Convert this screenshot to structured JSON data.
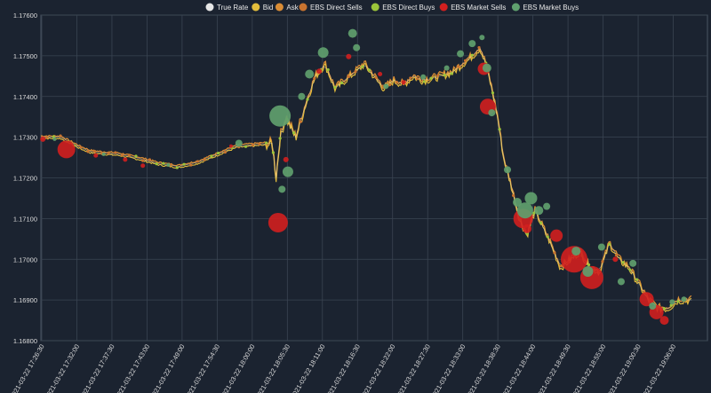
{
  "colors": {
    "background": "#1b2330",
    "grid": "#3a4452",
    "axis": "#4a5462",
    "true_rate": "#e6e6e6",
    "bid": "#e3bd3c",
    "ask": "#d98c35",
    "ebs_direct_sells": "#c8732f",
    "ebs_direct_buys": "#9bc43a",
    "ebs_market_sells": "#d21f1f",
    "ebs_market_buys": "#5fa06e"
  },
  "chart_data": {
    "type": "scatter",
    "title": "",
    "xlabel": "",
    "ylabel": "",
    "legend_position": "top-center",
    "grid": true,
    "ylim": [
      1.168,
      1.176
    ],
    "yticks": [
      "1.17600",
      "1.17500",
      "1.17400",
      "1.17300",
      "1.17200",
      "1.17100",
      "1.17000",
      "1.16900",
      "1.16800"
    ],
    "xticks": [
      "2021-03-22 17:26:30",
      "2021-03-22 17:32:00",
      "2021-03-22 17:37:30",
      "2021-03-22 17:43:00",
      "2021-03-22 17:49:00",
      "2021-03-22 17:54:30",
      "2021-03-22 18:00:00",
      "2021-03-22 18:05:30",
      "2021-03-22 18:11:00",
      "2021-03-22 18:16:30",
      "2021-03-22 18:22:00",
      "2021-03-22 18:27:30",
      "2021-03-22 18:33:00",
      "2021-03-22 18:38:30",
      "2021-03-22 18:44:00",
      "2021-03-22 18:49:30",
      "2021-03-22 18:55:00",
      "2021-03-22 19:00:30",
      "2021-03-22 19:06:00"
    ],
    "legend": [
      {
        "name": "True Rate",
        "color": "#e6e6e6"
      },
      {
        "name": "Bid",
        "color": "#e3bd3c"
      },
      {
        "name": "Ask",
        "color": "#d98c35"
      },
      {
        "name": "EBS Direct Sells",
        "color": "#c8732f"
      },
      {
        "name": "EBS Direct Buys",
        "color": "#9bc43a"
      },
      {
        "name": "EBS Market Sells",
        "color": "#d21f1f"
      },
      {
        "name": "EBS Market Buys",
        "color": "#5fa06e"
      }
    ],
    "price_path": [
      [
        0,
        1.173
      ],
      [
        1,
        1.173
      ],
      [
        2,
        1.17275
      ],
      [
        2.5,
        1.17265
      ],
      [
        3,
        1.17262
      ],
      [
        4,
        1.17258
      ],
      [
        5,
        1.17248
      ],
      [
        6,
        1.17235
      ],
      [
        7,
        1.17228
      ],
      [
        8,
        1.17238
      ],
      [
        9,
        1.17258
      ],
      [
        10,
        1.17278
      ],
      [
        11,
        1.17282
      ],
      [
        11.8,
        1.17285
      ],
      [
        12,
        1.172
      ],
      [
        12.2,
        1.173
      ],
      [
        12.5,
        1.1735
      ],
      [
        13,
        1.173
      ],
      [
        13.5,
        1.1738
      ],
      [
        14,
        1.1745
      ],
      [
        14.5,
        1.1748
      ],
      [
        15,
        1.1742
      ],
      [
        15.5,
        1.1744
      ],
      [
        16,
        1.1746
      ],
      [
        16.5,
        1.1748
      ],
      [
        17,
        1.1745
      ],
      [
        17.5,
        1.1742
      ],
      [
        18,
        1.1744
      ],
      [
        18.5,
        1.1743
      ],
      [
        19,
        1.1745
      ],
      [
        19.5,
        1.1744
      ],
      [
        20,
        1.17445
      ],
      [
        21,
        1.1746
      ],
      [
        21.5,
        1.1748
      ],
      [
        22,
        1.175
      ],
      [
        22.4,
        1.1752
      ],
      [
        22.7,
        1.1748
      ],
      [
        23,
        1.1742
      ],
      [
        23.3,
        1.1735
      ],
      [
        23.6,
        1.1725
      ],
      [
        24,
        1.1718
      ],
      [
        24.4,
        1.171
      ],
      [
        24.8,
        1.1706
      ],
      [
        25.2,
        1.1712
      ],
      [
        25.6,
        1.1708
      ],
      [
        26,
        1.1704
      ],
      [
        26.5,
        1.1698
      ],
      [
        27,
        1.17
      ],
      [
        27.5,
        1.1702
      ],
      [
        28,
        1.1698
      ],
      [
        28.5,
        1.1697
      ],
      [
        29,
        1.1704
      ],
      [
        29.5,
        1.17
      ],
      [
        30,
        1.1698
      ],
      [
        30.5,
        1.1694
      ],
      [
        31,
        1.169
      ],
      [
        31.5,
        1.1688
      ],
      [
        32,
        1.1688
      ],
      [
        32.5,
        1.169
      ],
      [
        33,
        1.169
      ]
    ],
    "market_sells": [
      {
        "x": 0.1,
        "y": 1.17295,
        "size": 3
      },
      {
        "x": 1.3,
        "y": 1.1727,
        "size": 10
      },
      {
        "x": 2.8,
        "y": 1.17255,
        "size": 2.5
      },
      {
        "x": 4.3,
        "y": 1.17245,
        "size": 2.5
      },
      {
        "x": 5.2,
        "y": 1.1723,
        "size": 2.5
      },
      {
        "x": 9.7,
        "y": 1.17278,
        "size": 2
      },
      {
        "x": 12.1,
        "y": 1.1709,
        "size": 11
      },
      {
        "x": 12.5,
        "y": 1.17245,
        "size": 3
      },
      {
        "x": 14.2,
        "y": 1.17462,
        "size": 3
      },
      {
        "x": 15.7,
        "y": 1.17498,
        "size": 3
      },
      {
        "x": 17.3,
        "y": 1.17455,
        "size": 2.5
      },
      {
        "x": 18.5,
        "y": 1.17435,
        "size": 2.5
      },
      {
        "x": 22.6,
        "y": 1.17468,
        "size": 7
      },
      {
        "x": 22.8,
        "y": 1.17375,
        "size": 9
      },
      {
        "x": 24.6,
        "y": 1.171,
        "size": 11
      },
      {
        "x": 24.8,
        "y": 1.17075,
        "size": 5
      },
      {
        "x": 26.3,
        "y": 1.17058,
        "size": 7
      },
      {
        "x": 27.2,
        "y": 1.17,
        "size": 15
      },
      {
        "x": 28.1,
        "y": 1.16955,
        "size": 13
      },
      {
        "x": 29.3,
        "y": 1.17,
        "size": 3
      },
      {
        "x": 30.9,
        "y": 1.16902,
        "size": 8
      },
      {
        "x": 31.4,
        "y": 1.1687,
        "size": 8
      },
      {
        "x": 31.8,
        "y": 1.1685,
        "size": 5
      }
    ],
    "market_buys": [
      {
        "x": 0.7,
        "y": 1.17295,
        "size": 2
      },
      {
        "x": 3.2,
        "y": 1.17258,
        "size": 2
      },
      {
        "x": 6.5,
        "y": 1.17232,
        "size": 2
      },
      {
        "x": 10.1,
        "y": 1.17285,
        "size": 4
      },
      {
        "x": 12.2,
        "y": 1.17352,
        "size": 12
      },
      {
        "x": 12.6,
        "y": 1.17215,
        "size": 6
      },
      {
        "x": 12.3,
        "y": 1.17172,
        "size": 4
      },
      {
        "x": 13.3,
        "y": 1.174,
        "size": 4
      },
      {
        "x": 13.7,
        "y": 1.17455,
        "size": 5
      },
      {
        "x": 14.4,
        "y": 1.17508,
        "size": 6
      },
      {
        "x": 15.9,
        "y": 1.17555,
        "size": 5
      },
      {
        "x": 16.1,
        "y": 1.1752,
        "size": 4
      },
      {
        "x": 17.6,
        "y": 1.17425,
        "size": 3
      },
      {
        "x": 19.5,
        "y": 1.17448,
        "size": 3
      },
      {
        "x": 20.7,
        "y": 1.1747,
        "size": 3
      },
      {
        "x": 21.4,
        "y": 1.17505,
        "size": 4
      },
      {
        "x": 22.0,
        "y": 1.1753,
        "size": 4
      },
      {
        "x": 22.5,
        "y": 1.17545,
        "size": 3
      },
      {
        "x": 22.75,
        "y": 1.1747,
        "size": 5
      },
      {
        "x": 23.0,
        "y": 1.1736,
        "size": 4
      },
      {
        "x": 23.8,
        "y": 1.1722,
        "size": 4
      },
      {
        "x": 24.3,
        "y": 1.1714,
        "size": 5
      },
      {
        "x": 24.7,
        "y": 1.1712,
        "size": 9
      },
      {
        "x": 25.0,
        "y": 1.1715,
        "size": 7
      },
      {
        "x": 25.4,
        "y": 1.1712,
        "size": 5
      },
      {
        "x": 25.8,
        "y": 1.1713,
        "size": 4
      },
      {
        "x": 27.3,
        "y": 1.1702,
        "size": 5
      },
      {
        "x": 27.9,
        "y": 1.1697,
        "size": 6
      },
      {
        "x": 28.6,
        "y": 1.1703,
        "size": 4
      },
      {
        "x": 29.6,
        "y": 1.16945,
        "size": 4
      },
      {
        "x": 30.2,
        "y": 1.1699,
        "size": 4
      },
      {
        "x": 31.2,
        "y": 1.16885,
        "size": 4
      },
      {
        "x": 32.2,
        "y": 1.16895,
        "size": 3
      },
      {
        "x": 32.8,
        "y": 1.16902,
        "size": 3
      }
    ]
  }
}
